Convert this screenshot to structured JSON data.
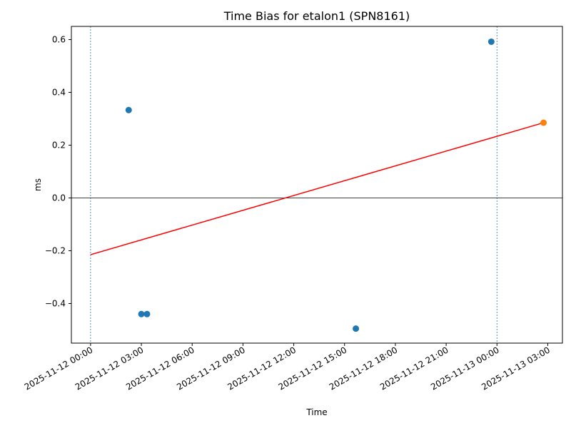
{
  "chart_data": {
    "type": "scatter",
    "title": "Time Bias for etalon1 (SPN8161)",
    "xlabel": "Time",
    "ylabel": "ms",
    "xlim": [
      "2025-11-11 22:52",
      "2025-11-13 03:52"
    ],
    "ylim": [
      -0.55,
      0.65
    ],
    "x_ticks": [
      "2025-11-12 00:00",
      "2025-11-12 03:00",
      "2025-11-12 06:00",
      "2025-11-12 09:00",
      "2025-11-12 12:00",
      "2025-11-12 15:00",
      "2025-11-12 18:00",
      "2025-11-12 21:00",
      "2025-11-13 00:00",
      "2025-11-13 03:00"
    ],
    "x_tick_labels": [
      "2025-11-12 00:00",
      "2025-11-12 03:00",
      "2025-11-12 06:00",
      "2025-11-12 09:00",
      "2025-11-12 12:00",
      "2025-11-12 15:00",
      "2025-11-12 18:00",
      "2025-11-12 21:00",
      "2025-11-13 00:00",
      "2025-11-13 03:00"
    ],
    "y_ticks": [
      -0.4,
      -0.2,
      0.0,
      0.2,
      0.4,
      0.6
    ],
    "y_tick_labels": [
      "−0.4",
      "−0.2",
      "0.0",
      "0.2",
      "0.4",
      "0.6"
    ],
    "grid": false,
    "series": [
      {
        "color": "#1f77b4",
        "points": [
          {
            "x": "2025-11-12 02:15",
            "y": 0.333
          },
          {
            "x": "2025-11-12 03:00",
            "y": -0.44
          },
          {
            "x": "2025-11-12 03:20",
            "y": -0.44
          },
          {
            "x": "2025-11-12 15:40",
            "y": -0.495
          },
          {
            "x": "2025-11-12 23:40",
            "y": 0.592
          }
        ]
      },
      {
        "color": "#ff7f0e",
        "points": [
          {
            "x": "2025-11-13 02:45",
            "y": 0.285
          }
        ]
      }
    ],
    "trend_line": {
      "color": "#ff0000",
      "points": [
        {
          "x": "2025-11-12 00:00",
          "y": -0.215
        },
        {
          "x": "2025-11-13 02:45",
          "y": 0.285
        }
      ]
    },
    "vertical_lines": {
      "color": "#1f77b4",
      "x": [
        "2025-11-12 00:00",
        "2025-11-13 00:00"
      ]
    },
    "zero_line": {
      "y": 0.0,
      "color": "#000000"
    }
  }
}
